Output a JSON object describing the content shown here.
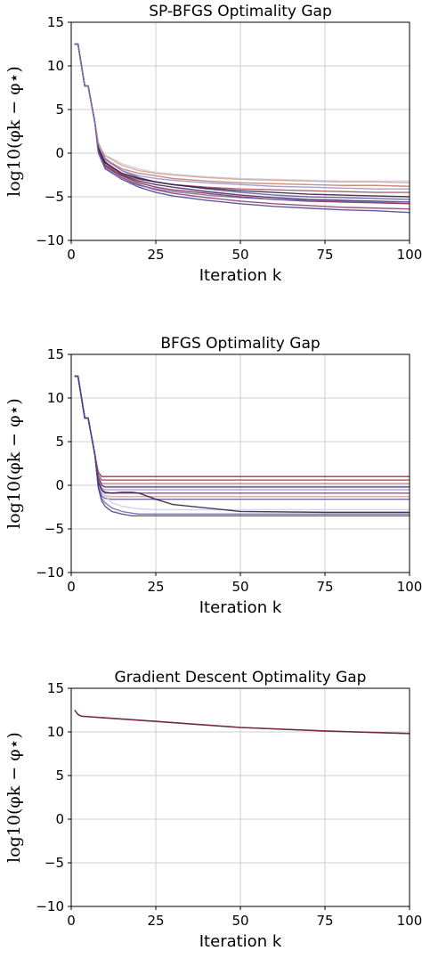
{
  "chart_data": [
    {
      "type": "line",
      "title": "SP-BFGS Optimality Gap",
      "xlabel": "Iteration k",
      "ylabel": "log10(φk − φ⋆)",
      "xlim": [
        0,
        100
      ],
      "ylim": [
        -10,
        15
      ],
      "xticks": [
        "0",
        "25",
        "50",
        "75",
        "100"
      ],
      "yticks": [
        "−10",
        "−5",
        "0",
        "5",
        "10",
        "15"
      ],
      "grid": true,
      "x": [
        1,
        2,
        4,
        5,
        7,
        8,
        10,
        15,
        20,
        25,
        30,
        40,
        50,
        60,
        70,
        80,
        90,
        100
      ],
      "series": [
        {
          "color": "#3b1c5a",
          "values": [
            12.5,
            12.5,
            7.7,
            7.7,
            3.5,
            1.0,
            -1.0,
            -2.5,
            -3.2,
            -3.6,
            -3.9,
            -4.4,
            -4.8,
            -5.1,
            -5.3,
            -5.4,
            -5.5,
            -5.6
          ]
        },
        {
          "color": "#7a2040",
          "values": [
            12.5,
            12.5,
            7.7,
            7.7,
            3.5,
            0.5,
            -1.4,
            -2.6,
            -3.4,
            -3.9,
            -4.2,
            -4.6,
            -5.0,
            -5.3,
            -5.5,
            -5.6,
            -5.7,
            -5.8
          ]
        },
        {
          "color": "#5a4f9a",
          "values": [
            12.5,
            12.5,
            7.7,
            7.7,
            3.5,
            1.2,
            -0.6,
            -2.0,
            -2.8,
            -3.3,
            -3.6,
            -4.1,
            -4.5,
            -4.8,
            -5.0,
            -5.1,
            -5.2,
            -5.3
          ]
        },
        {
          "color": "#c8cde6",
          "values": [
            12.5,
            12.5,
            7.7,
            7.7,
            3.5,
            1.0,
            -0.2,
            -1.2,
            -1.8,
            -2.2,
            -2.4,
            -2.7,
            -2.9,
            -3.0,
            -3.1,
            -3.2,
            -3.2,
            -3.2
          ]
        },
        {
          "color": "#c0786b",
          "values": [
            12.5,
            12.5,
            7.7,
            7.7,
            3.5,
            0.8,
            -0.7,
            -1.8,
            -2.3,
            -2.6,
            -2.9,
            -3.2,
            -3.4,
            -3.5,
            -3.6,
            -3.7,
            -3.7,
            -3.8
          ]
        },
        {
          "color": "#a04a5a",
          "values": [
            12.5,
            12.5,
            7.7,
            7.7,
            3.5,
            0.3,
            -1.3,
            -2.4,
            -3.0,
            -3.3,
            -3.6,
            -3.9,
            -4.1,
            -4.2,
            -4.3,
            -4.4,
            -4.5,
            -4.5
          ]
        },
        {
          "color": "#4a3a8a",
          "values": [
            12.5,
            12.5,
            7.7,
            7.7,
            3.5,
            0.2,
            -1.7,
            -3.0,
            -3.9,
            -4.5,
            -4.9,
            -5.4,
            -5.8,
            -6.1,
            -6.3,
            -6.5,
            -6.6,
            -6.8
          ]
        },
        {
          "color": "#8a3565",
          "values": [
            12.5,
            12.5,
            7.7,
            7.7,
            3.5,
            0.4,
            -1.5,
            -2.8,
            -3.6,
            -4.2,
            -4.6,
            -5.1,
            -5.5,
            -5.8,
            -6.0,
            -6.2,
            -6.3,
            -6.4
          ]
        },
        {
          "color": "#9b8ec8",
          "values": [
            12.5,
            12.5,
            7.7,
            7.7,
            3.5,
            0.9,
            -0.8,
            -2.0,
            -2.6,
            -2.9,
            -3.1,
            -3.4,
            -3.6,
            -3.8,
            -3.9,
            -4.0,
            -4.1,
            -4.1
          ]
        },
        {
          "color": "#2a1540",
          "values": [
            12.5,
            12.5,
            7.7,
            7.7,
            3.5,
            0.6,
            -1.1,
            -2.3,
            -2.9,
            -3.3,
            -3.6,
            -4.0,
            -4.3,
            -4.5,
            -4.7,
            -4.8,
            -4.9,
            -5.0
          ]
        },
        {
          "color": "#d3a28f",
          "values": [
            12.5,
            12.5,
            7.7,
            7.7,
            3.5,
            1.1,
            -0.3,
            -1.4,
            -2.0,
            -2.3,
            -2.5,
            -2.8,
            -3.0,
            -3.1,
            -3.2,
            -3.3,
            -3.3,
            -3.4
          ]
        },
        {
          "color": "#6e61ad",
          "values": [
            12.5,
            12.5,
            7.7,
            7.7,
            3.5,
            0.0,
            -1.8,
            -3.0,
            -3.7,
            -4.1,
            -4.4,
            -4.8,
            -5.1,
            -5.3,
            -5.4,
            -5.5,
            -5.6,
            -5.6
          ]
        }
      ]
    },
    {
      "type": "line",
      "title": "BFGS Optimality Gap",
      "xlabel": "Iteration k",
      "ylabel": "log10(φk − φ⋆)",
      "xlim": [
        0,
        100
      ],
      "ylim": [
        -10,
        15
      ],
      "xticks": [
        "0",
        "25",
        "50",
        "75",
        "100"
      ],
      "yticks": [
        "−10",
        "−5",
        "0",
        "5",
        "10",
        "15"
      ],
      "grid": true,
      "x": [
        1,
        2,
        4,
        5,
        7,
        8,
        9,
        10,
        12,
        15,
        18,
        20,
        25,
        30,
        50,
        75,
        100
      ],
      "series": [
        {
          "color": "#7a2040",
          "values": [
            12.5,
            12.5,
            7.7,
            7.7,
            3.5,
            1.5,
            1.0,
            1.0,
            1.0,
            1.0,
            1.0,
            1.0,
            1.0,
            1.0,
            1.0,
            1.0,
            1.0
          ]
        },
        {
          "color": "#a04a5a",
          "values": [
            12.5,
            12.5,
            7.7,
            7.7,
            3.5,
            1.2,
            0.6,
            0.6,
            0.6,
            0.6,
            0.6,
            0.6,
            0.6,
            0.6,
            0.6,
            0.6,
            0.6
          ]
        },
        {
          "color": "#c0786b",
          "values": [
            12.5,
            12.5,
            7.7,
            7.7,
            3.5,
            1.0,
            0.2,
            0.2,
            0.2,
            0.2,
            0.2,
            0.2,
            0.2,
            0.2,
            0.2,
            0.2,
            0.2
          ]
        },
        {
          "color": "#3b1c5a",
          "values": [
            12.5,
            12.5,
            7.7,
            7.7,
            3.5,
            0.8,
            0.0,
            -0.2,
            -0.2,
            -0.2,
            -0.2,
            -0.2,
            -0.2,
            -0.2,
            -0.2,
            -0.2,
            -0.2
          ]
        },
        {
          "color": "#9b8ec8",
          "values": [
            12.5,
            12.5,
            7.7,
            7.7,
            3.5,
            0.6,
            -0.3,
            -0.5,
            -0.5,
            -0.5,
            -0.5,
            -0.5,
            -0.5,
            -0.5,
            -0.5,
            -0.5,
            -0.5
          ]
        },
        {
          "color": "#8a3565",
          "values": [
            12.5,
            12.5,
            7.7,
            7.7,
            3.5,
            0.4,
            -0.6,
            -0.9,
            -0.9,
            -0.9,
            -0.9,
            -0.9,
            -0.9,
            -0.9,
            -0.9,
            -0.9,
            -0.9
          ]
        },
        {
          "color": "#d3a28f",
          "values": [
            12.5,
            12.5,
            7.7,
            7.7,
            3.5,
            0.2,
            -0.9,
            -1.2,
            -1.3,
            -1.3,
            -1.3,
            -1.3,
            -1.3,
            -1.3,
            -1.3,
            -1.3,
            -1.3
          ]
        },
        {
          "color": "#5a4f9a",
          "values": [
            12.5,
            12.5,
            7.7,
            7.7,
            3.5,
            0.0,
            -1.2,
            -1.5,
            -1.6,
            -1.6,
            -1.6,
            -1.6,
            -1.6,
            -1.6,
            -1.6,
            -1.6,
            -1.6
          ]
        },
        {
          "color": "#c8cde6",
          "values": [
            12.5,
            12.5,
            7.7,
            7.7,
            3.5,
            0.2,
            -0.8,
            -1.2,
            -2.0,
            -2.4,
            -2.6,
            -2.7,
            -2.8,
            -2.8,
            -2.8,
            -2.8,
            -2.8
          ]
        },
        {
          "color": "#2a1540",
          "values": [
            12.5,
            12.5,
            7.7,
            7.7,
            3.5,
            0.3,
            -0.5,
            -0.8,
            -0.9,
            -0.8,
            -0.8,
            -0.9,
            -1.6,
            -2.2,
            -3.0,
            -3.1,
            -3.1
          ]
        },
        {
          "color": "#6e61ad",
          "values": [
            12.5,
            12.5,
            7.7,
            7.7,
            3.5,
            -0.2,
            -1.5,
            -2.0,
            -2.6,
            -3.0,
            -3.2,
            -3.3,
            -3.3,
            -3.3,
            -3.3,
            -3.3,
            -3.3
          ]
        },
        {
          "color": "#4a3a8a",
          "values": [
            12.5,
            12.5,
            7.7,
            7.7,
            3.5,
            -0.3,
            -1.8,
            -2.4,
            -3.0,
            -3.3,
            -3.5,
            -3.5,
            -3.5,
            -3.5,
            -3.5,
            -3.5,
            -3.5
          ]
        }
      ]
    },
    {
      "type": "line",
      "title": "Gradient Descent Optimality Gap",
      "xlabel": "Iteration k",
      "ylabel": "log10(φk − φ⋆)",
      "xlim": [
        0,
        100
      ],
      "ylim": [
        -10,
        15
      ],
      "xticks": [
        "0",
        "25",
        "50",
        "75",
        "100"
      ],
      "yticks": [
        "−10",
        "−5",
        "0",
        "5",
        "10",
        "15"
      ],
      "grid": true,
      "x": [
        1,
        2,
        3,
        10,
        25,
        50,
        75,
        100
      ],
      "series": [
        {
          "color": "#3b1c5a",
          "values": [
            12.5,
            12.0,
            11.8,
            11.6,
            11.2,
            10.5,
            10.1,
            9.8
          ]
        },
        {
          "color": "#7a2040",
          "values": [
            12.5,
            12.0,
            11.8,
            11.62,
            11.22,
            10.52,
            10.12,
            9.82
          ]
        }
      ]
    }
  ]
}
